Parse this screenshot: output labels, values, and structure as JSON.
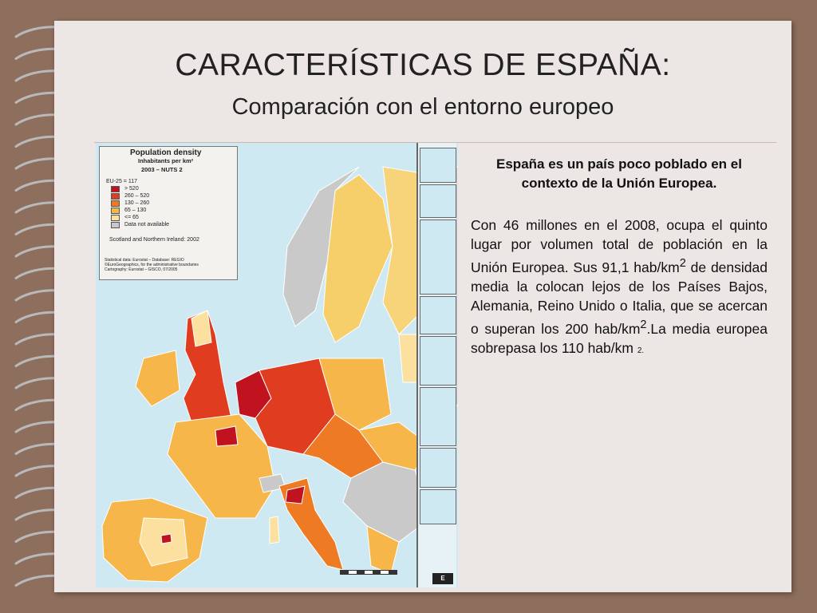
{
  "slide": {
    "title": "CARACTERÍSTICAS DE ESPAÑA:",
    "subtitle": "Comparación con el entorno europeo"
  },
  "map": {
    "legend": {
      "title": "Population density",
      "subtitle": "Inhabitants per km²",
      "period": "2003 – NUTS 2",
      "average": "EU-25 = 117",
      "classes": [
        {
          "label": "> 520",
          "color": "#c1121f"
        },
        {
          "label": "260 – 520",
          "color": "#e03c1f"
        },
        {
          "label": "130 – 260",
          "color": "#ee7a23"
        },
        {
          "label": "65 – 130",
          "color": "#f6b64a"
        },
        {
          "label": "<= 65",
          "color": "#fbe0a0"
        },
        {
          "label": "Data not available",
          "color": "#c9c9c9"
        }
      ],
      "note": "Scotland and Northern Ireland: 2002",
      "source": "Statistical data: Eurostat – Database: REGIO\n©EuroGeographics, for the administrative boundaries\nCartography: Eurostat – GISCO, 07/2005"
    },
    "colors": {
      "sea": "#cfe9f3",
      "non_eu": "#c9c9c9"
    },
    "logo_text": "E"
  },
  "text": {
    "lead": "España es un país poco poblado en el contexto de la Unión Europea.",
    "body_1": "Con 46 millones en el 2008, ocupa el quinto lugar por volumen total de población en la Unión Europea. Sus 91,1 hab/km",
    "sup_1": "2",
    "body_2": " de densidad media la colocan lejos de los Países Bajos, Alemania, Reino Unido o Italia, que se acercan o superan los 200 hab/km",
    "sup_2": "2",
    "body_3": ".La media europea sobrepasa los 110 hab/km ",
    "small_tail": "2."
  }
}
